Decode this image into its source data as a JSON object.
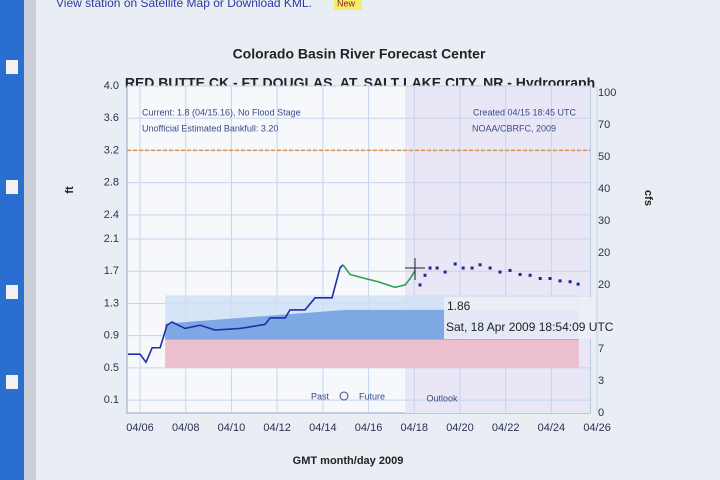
{
  "header": {
    "link_text": "View station on Satellite Map or Download KML.",
    "badge": "New"
  },
  "chart_data": {
    "type": "line",
    "title": "Colorado Basin River Forecast Center",
    "subtitle": "RED BUTTE CK - FT DOUGLAS, AT, SALT LAKE CITY, NR - Hydrograph",
    "x_label": "GMT month/day 2009",
    "y_label": "ft",
    "y2_label": "cfs",
    "annotations": {
      "current": "Current: 1.8 (04/15.16), No Flood Stage",
      "bankfull_note": "Unofficial Estimated Bankfull: 3.20",
      "created": "Created 04/15 18:45 UTC",
      "credit": "NOAA/CBRFC, 2009",
      "past": "Past",
      "future": "Future",
      "outlook": "Outlook",
      "tooltip_value": "1.86",
      "tooltip_time": "Sat, 18 Apr 2009 18:54:09 UTC"
    },
    "xlim": [
      5.43,
      25.69
    ],
    "xticks": [
      {
        "value": 6,
        "label": "04/06"
      },
      {
        "value": 8,
        "label": "04/08"
      },
      {
        "value": 10,
        "label": "04/10"
      },
      {
        "value": 12,
        "label": "04/12"
      },
      {
        "value": 14,
        "label": "04/14"
      },
      {
        "value": 16,
        "label": "04/16"
      },
      {
        "value": 18,
        "label": "04/18"
      },
      {
        "value": 20,
        "label": "04/20"
      },
      {
        "value": 22,
        "label": "04/22"
      },
      {
        "value": 24,
        "label": "04/24"
      },
      {
        "value": 26,
        "label": "04/26"
      }
    ],
    "ylim": [
      -0.06,
      4.0
    ],
    "yticks": [
      0.1,
      0.5,
      0.9,
      1.3,
      1.7,
      2.1,
      2.4,
      2.8,
      3.2,
      3.6,
      {
        "value": 4.0,
        "label": "4.0"
      }
    ],
    "y2categories": [
      "0",
      "3",
      "7",
      null,
      "20",
      "20",
      "30",
      "40",
      "50",
      "70",
      "100"
    ],
    "grid": true,
    "bankfull": 3.2,
    "bankfull_color": "#e0914a",
    "bands": [
      {
        "color": "#cfe0f5",
        "x": [
          7.1,
          25.2
        ],
        "upper": [
          1.4,
          1.4
        ],
        "lower": [
          0.5,
          0.5
        ]
      },
      {
        "color": "#6f9de0",
        "x": [
          7.1,
          15.0,
          25.2
        ],
        "upper": [
          1.05,
          1.22,
          1.22
        ],
        "lower": [
          0.85,
          0.85,
          0.85
        ]
      },
      {
        "color": "#f0b8c8",
        "x": [
          7.1,
          15.0,
          25.2
        ],
        "upper": [
          0.85,
          0.85,
          0.85
        ],
        "lower": [
          0.5,
          0.5,
          0.5
        ]
      }
    ],
    "series": [
      {
        "style": "line",
        "color": "#1f2fa8",
        "x": [
          5.47,
          6.0,
          6.26,
          6.53,
          6.88,
          7.18,
          7.4,
          7.97,
          8.63,
          9.28,
          10.38,
          11.47,
          11.69,
          12.35,
          12.56,
          13.22,
          13.66,
          14.4,
          14.75,
          14.88
        ],
        "values": [
          0.67,
          0.67,
          0.57,
          0.75,
          0.75,
          1.03,
          1.07,
          0.99,
          1.03,
          0.97,
          0.99,
          1.04,
          1.12,
          1.12,
          1.22,
          1.22,
          1.37,
          1.37,
          1.74,
          1.78
        ]
      },
      {
        "style": "line",
        "color": "#2e9e4a",
        "x": [
          14.88,
          15.19,
          15.85,
          16.42,
          17.16,
          17.6,
          17.82,
          18.04
        ],
        "values": [
          1.78,
          1.66,
          1.61,
          1.57,
          1.5,
          1.53,
          1.61,
          1.71
        ]
      },
      {
        "style": "dots",
        "color": "#1f2a8a",
        "x": [
          18.25,
          18.47,
          18.69,
          19.0,
          19.35,
          19.79,
          20.14,
          20.53,
          20.88,
          21.32,
          21.75,
          22.19,
          22.63,
          23.07,
          23.51,
          23.94,
          24.38,
          24.82,
          25.17
        ],
        "values": [
          1.53,
          1.65,
          1.74,
          1.74,
          1.69,
          1.79,
          1.74,
          1.74,
          1.78,
          1.74,
          1.69,
          1.71,
          1.66,
          1.65,
          1.61,
          1.61,
          1.58,
          1.57,
          1.54
        ]
      }
    ]
  }
}
